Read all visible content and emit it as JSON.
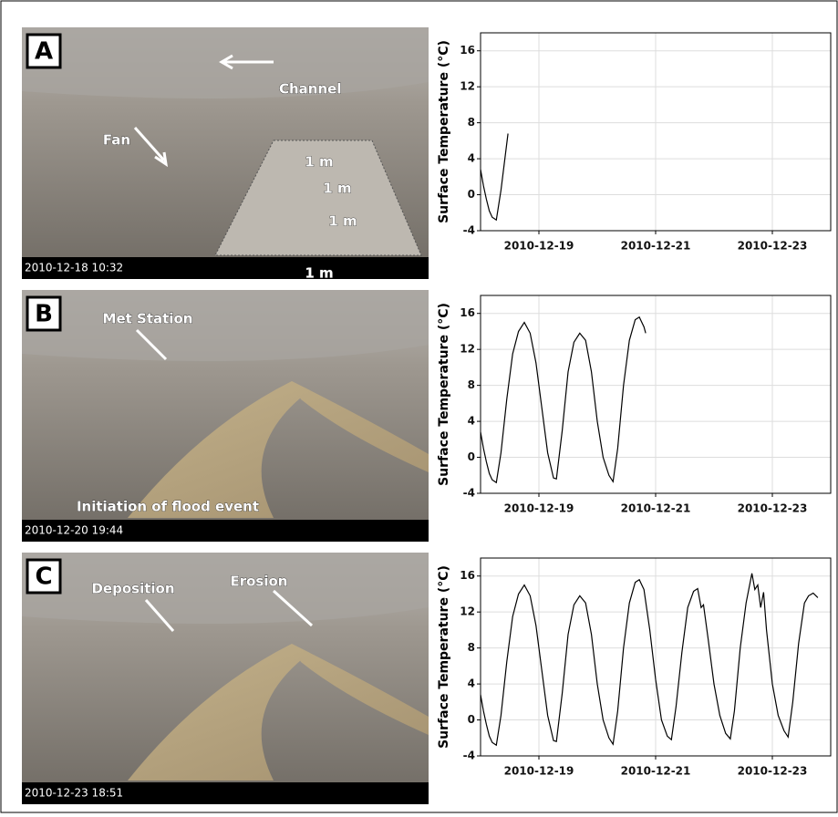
{
  "photos": [
    {
      "letter": "A",
      "timestamp": "2010-12-18  10:32",
      "notes": [
        "Channel",
        "Fan",
        "1 m",
        "1 m",
        "1 m",
        "1 m"
      ]
    },
    {
      "letter": "B",
      "timestamp": "2010-12-20  19:44",
      "notes": [
        "Met Station",
        "Initiation of flood event"
      ]
    },
    {
      "letter": "C",
      "timestamp": "2010-12-23  18:51",
      "notes": [
        "Erosion",
        "Deposition"
      ]
    }
  ],
  "chart_data": [
    {
      "type": "line",
      "ylabel": "Surface Temperature (°C)",
      "color": "#000000",
      "grid": true,
      "xlim": [
        18,
        24
      ],
      "xticks": [
        {
          "value": 19,
          "label": "2010-12-19"
        },
        {
          "value": 21,
          "label": "2010-12-21"
        },
        {
          "value": 23,
          "label": "2010-12-23"
        }
      ],
      "ylim": [
        -4,
        18
      ],
      "yticks": [
        -4,
        0,
        4,
        8,
        12,
        16
      ],
      "x": [
        18.0,
        18.05,
        18.1,
        18.15,
        18.2,
        18.27,
        18.35,
        18.47
      ],
      "values": [
        2.8,
        1.0,
        -0.5,
        -1.8,
        -2.5,
        -2.8,
        0.5,
        6.8
      ]
    },
    {
      "type": "line",
      "ylabel": "Surface Temperature (°C)",
      "color": "#000000",
      "grid": true,
      "xlim": [
        18,
        24
      ],
      "xticks": [
        {
          "value": 19,
          "label": "2010-12-19"
        },
        {
          "value": 21,
          "label": "2010-12-21"
        },
        {
          "value": 23,
          "label": "2010-12-23"
        }
      ],
      "ylim": [
        -4,
        18
      ],
      "yticks": [
        -4,
        0,
        4,
        8,
        12,
        16
      ],
      "x": [
        18.0,
        18.05,
        18.1,
        18.15,
        18.2,
        18.27,
        18.35,
        18.45,
        18.55,
        18.65,
        18.75,
        18.85,
        18.95,
        19.05,
        19.15,
        19.25,
        19.3,
        19.4,
        19.5,
        19.6,
        19.7,
        19.8,
        19.9,
        20.0,
        20.1,
        20.2,
        20.27,
        20.35,
        20.45,
        20.55,
        20.65,
        20.72,
        20.8,
        20.83
      ],
      "values": [
        2.8,
        1.0,
        -0.5,
        -1.8,
        -2.5,
        -2.8,
        0.5,
        6.5,
        11.5,
        14.0,
        15.0,
        13.8,
        10.5,
        5.5,
        0.5,
        -2.3,
        -2.4,
        3.0,
        9.5,
        12.8,
        13.8,
        13.0,
        9.5,
        4.0,
        0.0,
        -2.0,
        -2.7,
        1.0,
        8.0,
        13.0,
        15.3,
        15.6,
        14.5,
        13.8
      ]
    },
    {
      "type": "line",
      "ylabel": "Surface Temperature (°C)",
      "color": "#000000",
      "grid": true,
      "xlim": [
        18,
        24
      ],
      "xticks": [
        {
          "value": 19,
          "label": "2010-12-19"
        },
        {
          "value": 21,
          "label": "2010-12-21"
        },
        {
          "value": 23,
          "label": "2010-12-23"
        }
      ],
      "ylim": [
        -4,
        18
      ],
      "yticks": [
        -4,
        0,
        4,
        8,
        12,
        16
      ],
      "x": [
        18.0,
        18.05,
        18.1,
        18.15,
        18.2,
        18.27,
        18.35,
        18.45,
        18.55,
        18.65,
        18.75,
        18.85,
        18.95,
        19.05,
        19.15,
        19.25,
        19.3,
        19.4,
        19.5,
        19.6,
        19.7,
        19.8,
        19.9,
        20.0,
        20.1,
        20.2,
        20.27,
        20.35,
        20.45,
        20.55,
        20.65,
        20.72,
        20.8,
        20.9,
        21.0,
        21.1,
        21.2,
        21.27,
        21.35,
        21.45,
        21.55,
        21.65,
        21.72,
        21.78,
        21.82,
        21.9,
        22.0,
        22.1,
        22.2,
        22.28,
        22.35,
        22.45,
        22.55,
        22.65,
        22.7,
        22.75,
        22.8,
        22.85,
        22.9,
        23.0,
        23.1,
        23.2,
        23.27,
        23.35,
        23.45,
        23.55,
        23.62,
        23.7,
        23.78
      ],
      "values": [
        2.8,
        1.0,
        -0.5,
        -1.8,
        -2.5,
        -2.8,
        0.5,
        6.5,
        11.5,
        14.0,
        15.0,
        13.8,
        10.5,
        5.5,
        0.5,
        -2.3,
        -2.4,
        3.0,
        9.5,
        12.8,
        13.8,
        13.0,
        9.5,
        4.0,
        0.0,
        -2.0,
        -2.7,
        1.0,
        8.0,
        13.0,
        15.3,
        15.6,
        14.5,
        10.0,
        4.5,
        0.0,
        -1.8,
        -2.2,
        1.5,
        7.5,
        12.5,
        14.3,
        14.6,
        12.5,
        12.8,
        9.0,
        4.0,
        0.5,
        -1.5,
        -2.1,
        1.0,
        8.0,
        13.0,
        16.3,
        14.5,
        15.0,
        12.5,
        14.2,
        10.0,
        4.0,
        0.5,
        -1.2,
        -1.9,
        2.0,
        8.5,
        13.0,
        13.8,
        14.1,
        13.6
      ]
    }
  ]
}
